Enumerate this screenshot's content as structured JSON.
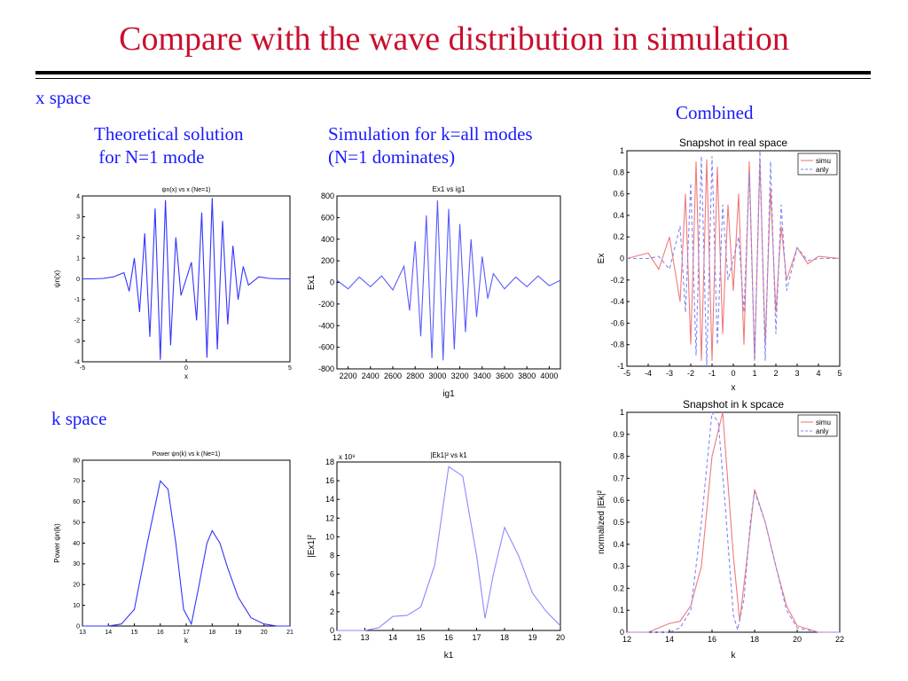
{
  "title": "Compare with the wave distribution in simulation",
  "labels": {
    "x_space": "x space",
    "k_space": "k space",
    "theory": "Theoretical solution\n for N=1 mode",
    "simulation": "Simulation for k=all modes\n(N=1 dominates)",
    "combined": "Combined"
  },
  "colors": {
    "title": "#c8102e",
    "labels": "#1a1aff",
    "line_blue": "#3333ff",
    "simu": "#f07a7a",
    "anly": "#7f86f5"
  },
  "chart_data": [
    {
      "id": "theory-x",
      "type": "line",
      "title": "ψn(x) vs x (Ne=1)",
      "xlabel": "x",
      "ylabel": "ψn(x)",
      "xlim": [
        -5,
        5
      ],
      "ylim": [
        -4,
        4
      ],
      "xticks": [
        -5,
        0,
        5
      ],
      "yticks": [
        -4,
        -3,
        -2,
        -1,
        0,
        1,
        2,
        3,
        4
      ],
      "grid": false,
      "series": [
        {
          "color": "#3333ff",
          "x": [
            -5,
            -4.5,
            -4,
            -3.5,
            -3,
            -2.75,
            -2.5,
            -2.25,
            -2,
            -1.75,
            -1.5,
            -1.25,
            -1,
            -0.75,
            -0.5,
            -0.25,
            0,
            0.25,
            0.5,
            0.75,
            1,
            1.25,
            1.5,
            1.75,
            2,
            2.25,
            2.5,
            2.75,
            3,
            3.5,
            4,
            4.5,
            5
          ],
          "y": [
            0,
            0,
            0.02,
            0.1,
            0.3,
            -0.6,
            1.0,
            -1.6,
            2.2,
            -2.8,
            3.4,
            -3.9,
            3.8,
            -3.2,
            2.0,
            -0.8,
            0,
            0.8,
            -2.0,
            3.2,
            -3.8,
            3.9,
            -3.4,
            2.8,
            -2.2,
            1.6,
            -1.0,
            0.6,
            -0.3,
            0.1,
            0.02,
            0,
            0
          ]
        }
      ]
    },
    {
      "id": "sim-x",
      "type": "line",
      "title": "Ex1 vs ig1",
      "xlabel": "ig1",
      "ylabel": "Ex1",
      "xlim": [
        2100,
        4100
      ],
      "ylim": [
        -800,
        800
      ],
      "xticks": [
        2200,
        2400,
        2600,
        2800,
        3000,
        3200,
        3400,
        3600,
        3800,
        4000
      ],
      "yticks": [
        -800,
        -600,
        -400,
        -200,
        0,
        200,
        400,
        600,
        800
      ],
      "grid": false,
      "series": [
        {
          "color": "#5a5aff",
          "x": [
            2100,
            2200,
            2300,
            2400,
            2500,
            2600,
            2700,
            2750,
            2800,
            2850,
            2900,
            2950,
            3000,
            3050,
            3100,
            3150,
            3200,
            3250,
            3300,
            3350,
            3400,
            3450,
            3500,
            3600,
            3700,
            3800,
            3900,
            4000,
            4100
          ],
          "y": [
            20,
            -60,
            50,
            -40,
            60,
            -70,
            150,
            -260,
            380,
            -500,
            620,
            -700,
            760,
            -720,
            680,
            -620,
            540,
            -460,
            400,
            -320,
            240,
            -150,
            80,
            -60,
            50,
            -40,
            60,
            -30,
            20
          ]
        }
      ]
    },
    {
      "id": "combined-x",
      "type": "line",
      "title": "Snapshot in real space",
      "xlabel": "x",
      "ylabel": "Ex",
      "xlim": [
        -5,
        5
      ],
      "ylim": [
        -1,
        1
      ],
      "xticks": [
        -5,
        -4,
        -3,
        -2,
        -1,
        0,
        1,
        2,
        3,
        4,
        5
      ],
      "yticks": [
        -1,
        -0.8,
        -0.6,
        -0.4,
        -0.2,
        0,
        0.2,
        0.4,
        0.6,
        0.8,
        1
      ],
      "grid": false,
      "legend": "top-right",
      "series": [
        {
          "name": "simu",
          "color": "#f07a7a",
          "dash": false,
          "x": [
            -5,
            -4,
            -3.5,
            -3,
            -2.5,
            -2.25,
            -2,
            -1.75,
            -1.5,
            -1.25,
            -1,
            -0.75,
            -0.5,
            -0.25,
            0,
            0.25,
            0.5,
            0.75,
            1,
            1.25,
            1.5,
            1.75,
            2,
            2.25,
            2.5,
            3,
            3.5,
            4,
            5
          ],
          "y": [
            0,
            0.05,
            -0.1,
            0.2,
            -0.4,
            0.6,
            -0.8,
            0.9,
            -0.95,
            0.92,
            -0.95,
            0.85,
            -0.7,
            0.5,
            -0.3,
            0.6,
            -0.8,
            0.9,
            -0.95,
            0.9,
            -0.8,
            0.65,
            -0.5,
            0.3,
            -0.2,
            0.1,
            -0.05,
            0.02,
            0
          ]
        },
        {
          "name": "anly",
          "color": "#7f86f5",
          "dash": true,
          "x": [
            -5,
            -4,
            -3.5,
            -3,
            -2.5,
            -2.25,
            -2,
            -1.75,
            -1.5,
            -1.25,
            -1,
            -0.75,
            -0.5,
            -0.25,
            0,
            0.25,
            0.5,
            0.75,
            1,
            1.25,
            1.5,
            1.75,
            2,
            2.25,
            2.5,
            3,
            3.5,
            4,
            5
          ],
          "y": [
            0,
            0,
            0.02,
            -0.1,
            0.3,
            -0.5,
            0.7,
            -0.9,
            0.95,
            -1.0,
            0.95,
            -0.8,
            0.5,
            -0.2,
            0,
            0.2,
            -0.5,
            0.8,
            -0.95,
            1.0,
            -0.95,
            0.9,
            -0.7,
            0.5,
            -0.3,
            0.1,
            -0.02,
            0,
            0
          ]
        }
      ]
    },
    {
      "id": "theory-k",
      "type": "line",
      "title": "Power ψn(k) vs k (Ne=1)",
      "xlabel": "k",
      "ylabel": "Power ψn(k)",
      "xlim": [
        13,
        21
      ],
      "ylim": [
        0,
        80
      ],
      "xticks": [
        13,
        14,
        15,
        16,
        17,
        18,
        19,
        20,
        21
      ],
      "yticks": [
        0,
        10,
        20,
        30,
        40,
        50,
        60,
        70,
        80
      ],
      "grid": false,
      "series": [
        {
          "color": "#3333ff",
          "x": [
            13,
            14,
            14.5,
            15,
            15.5,
            16,
            16.3,
            16.6,
            16.9,
            17.2,
            17.5,
            17.8,
            18,
            18.3,
            18.6,
            19,
            19.5,
            20,
            20.5,
            21
          ],
          "y": [
            0,
            0,
            1,
            8,
            40,
            70,
            66,
            40,
            8,
            1,
            20,
            40,
            46,
            40,
            28,
            14,
            4,
            1,
            0,
            0
          ]
        }
      ]
    },
    {
      "id": "sim-k",
      "type": "line",
      "title": "|Ek1|² vs k1",
      "xlabel": "k1",
      "ylabel": "|Ex1|²",
      "multiplier": "x 10⁹",
      "xlim": [
        12,
        20
      ],
      "ylim": [
        0,
        18
      ],
      "xticks": [
        12,
        13,
        14,
        15,
        16,
        17,
        18,
        19,
        20
      ],
      "yticks": [
        0,
        2,
        4,
        6,
        8,
        10,
        12,
        14,
        16,
        18
      ],
      "grid": false,
      "series": [
        {
          "color": "#8a8aff",
          "x": [
            12,
            13,
            13.5,
            14,
            14.5,
            15,
            15.5,
            16,
            16.5,
            17,
            17.3,
            17.6,
            18,
            18.5,
            19,
            19.5,
            20
          ],
          "y": [
            0,
            0,
            0.3,
            1.5,
            1.6,
            2.5,
            7,
            17.5,
            16.5,
            8,
            1.3,
            6,
            11,
            8,
            4,
            2,
            0.5
          ]
        }
      ]
    },
    {
      "id": "combined-k",
      "type": "line",
      "title": "Snapshot in k spcace",
      "xlabel": "k",
      "ylabel": "normalized |Ek|²",
      "xlim": [
        12,
        22
      ],
      "ylim": [
        0,
        1
      ],
      "xticks": [
        12,
        14,
        16,
        18,
        20,
        22
      ],
      "yticks": [
        0,
        0.1,
        0.2,
        0.3,
        0.4,
        0.5,
        0.6,
        0.7,
        0.8,
        0.9,
        1
      ],
      "grid": false,
      "legend": "top-right",
      "series": [
        {
          "name": "simu",
          "color": "#f07a7a",
          "dash": false,
          "x": [
            12,
            13,
            13.5,
            14,
            14.5,
            15,
            15.5,
            16,
            16.5,
            17,
            17.3,
            17.6,
            18,
            18.5,
            19,
            19.5,
            20,
            21,
            22
          ],
          "y": [
            0,
            0,
            0.02,
            0.04,
            0.05,
            0.12,
            0.3,
            0.8,
            1.0,
            0.35,
            0.05,
            0.3,
            0.65,
            0.5,
            0.3,
            0.12,
            0.03,
            0,
            0
          ]
        },
        {
          "name": "anly",
          "color": "#7f86f5",
          "dash": true,
          "x": [
            12,
            14,
            14.5,
            15,
            15.5,
            16,
            16.3,
            16.6,
            17,
            17.2,
            17.5,
            17.8,
            18,
            18.5,
            19,
            19.5,
            20,
            21,
            22
          ],
          "y": [
            0,
            0,
            0.02,
            0.1,
            0.5,
            1.0,
            0.95,
            0.6,
            0.08,
            0.01,
            0.15,
            0.5,
            0.64,
            0.5,
            0.3,
            0.1,
            0.02,
            0,
            0
          ]
        }
      ]
    }
  ]
}
